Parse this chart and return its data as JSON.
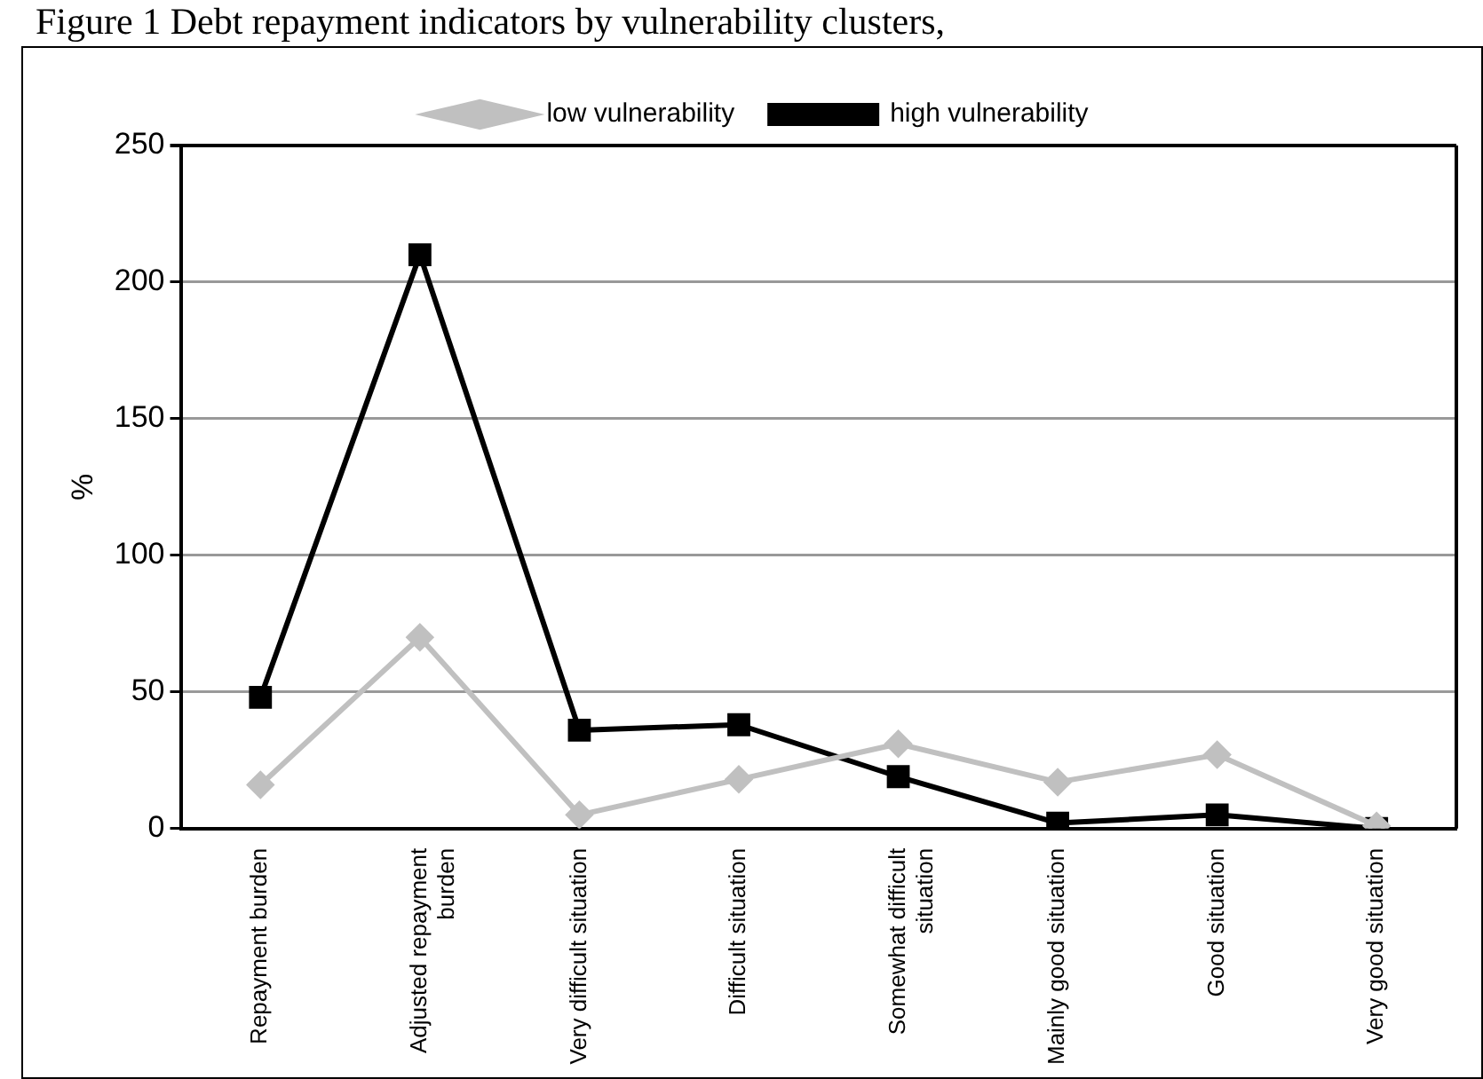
{
  "chart_data": {
    "type": "line",
    "title": "Figure 1 Debt repayment indicators by vulnerability clusters,",
    "ylabel": "%",
    "categories": [
      "Repayment burden",
      "Adjusted repayment burden",
      "Very difficult situation",
      "Difficult situation",
      "Somewhat difficult situation",
      "Mainly good situation",
      "Good situation",
      "Very good situation"
    ],
    "series": [
      {
        "name": "low vulnerability",
        "color": "#c0c0c0",
        "marker": "diamond",
        "values": [
          16,
          70,
          5,
          18,
          31,
          17,
          27,
          1
        ]
      },
      {
        "name": "high vulnerability",
        "color": "#000000",
        "marker": "square",
        "values": [
          48,
          210,
          36,
          38,
          19,
          2,
          5,
          0
        ]
      }
    ],
    "ylim": [
      0,
      250
    ],
    "yticks": [
      0,
      50,
      100,
      150,
      200,
      250
    ],
    "grid": "y",
    "legend": "top",
    "line_style": "solid"
  }
}
